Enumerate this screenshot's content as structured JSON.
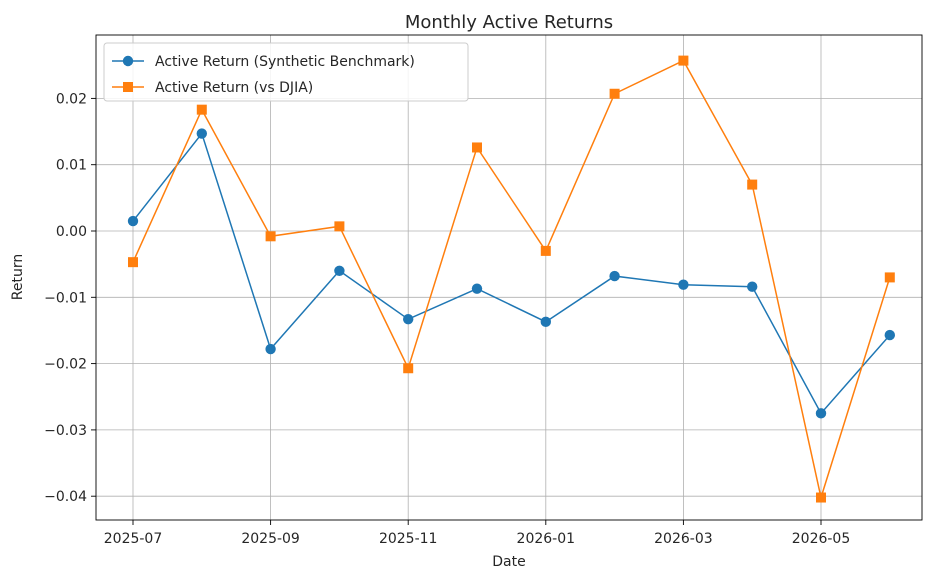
{
  "chart_data": {
    "type": "line",
    "title": "Monthly Active Returns",
    "xlabel": "Date",
    "ylabel": "Return",
    "x": [
      "2025-07",
      "2025-08",
      "2025-09",
      "2025-10",
      "2025-11",
      "2025-12",
      "2026-01",
      "2026-02",
      "2026-03",
      "2026-04",
      "2026-05",
      "2026-06"
    ],
    "x_ticks": [
      "2025-07",
      "2025-09",
      "2025-11",
      "2026-01",
      "2026-03",
      "2026-05"
    ],
    "y_ticks": [
      0.02,
      0.01,
      0.0,
      -0.01,
      -0.02,
      -0.03,
      -0.04
    ],
    "y_tick_labels": [
      "0.02",
      "0.01",
      "0.00",
      "−0.01",
      "−0.02",
      "−0.03",
      "−0.04"
    ],
    "ylim": [
      -0.0437,
      0.0288
    ],
    "grid": true,
    "legend_position": "top-left",
    "series": [
      {
        "name": "Active Return (Synthetic Benchmark)",
        "color": "#1f77b4",
        "marker": "circle",
        "values": [
          0.0015,
          0.0147,
          -0.0178,
          -0.006,
          -0.0133,
          -0.0087,
          -0.0137,
          -0.0068,
          -0.0081,
          -0.0084,
          -0.0275,
          -0.0157
        ]
      },
      {
        "name": "Active Return (vs DJIA)",
        "color": "#ff7f0e",
        "marker": "square",
        "values": [
          -0.0047,
          0.0183,
          -0.0008,
          0.0007,
          -0.0207,
          0.0126,
          -0.003,
          0.0207,
          0.0257,
          0.007,
          -0.0402,
          -0.007
        ]
      }
    ]
  }
}
